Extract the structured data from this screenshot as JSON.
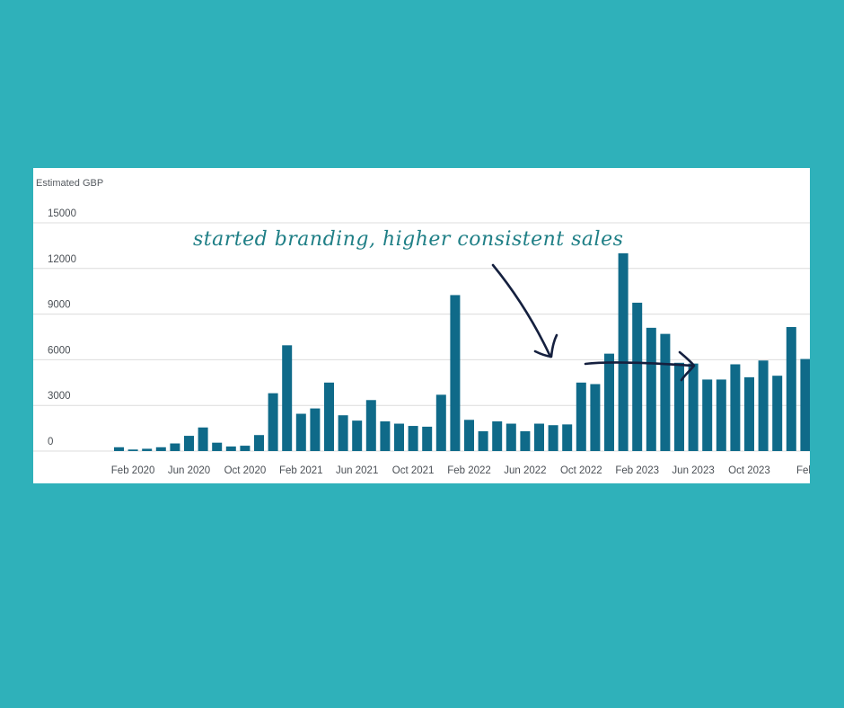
{
  "colors": {
    "background": "#2fb1ba",
    "card": "#ffffff",
    "bar": "#0f6a89",
    "gridline": "#dcdcdc",
    "annotation_text": "#1f7f86",
    "arrow": "#15203f"
  },
  "chart_data": {
    "type": "bar",
    "ylabel": "Estimated GBP",
    "ylim": [
      0,
      15000
    ],
    "yticks": [
      0,
      3000,
      6000,
      9000,
      12000,
      15000
    ],
    "grid": true,
    "legend": "none",
    "x_tick_labels": [
      "Feb 2020",
      "Jun 2020",
      "Oct 2020",
      "Feb 2021",
      "Jun 2021",
      "Oct 2021",
      "Feb 2022",
      "Jun 2022",
      "Oct 2022",
      "Feb 2023",
      "Jun 2023",
      "Oct 2023",
      "Feb"
    ],
    "x_tick_bar_index": [
      1,
      5,
      9,
      13,
      17,
      21,
      25,
      29,
      33,
      37,
      41,
      45,
      49
    ],
    "categories": [
      "Jan 2020",
      "Feb 2020",
      "Mar 2020",
      "Apr 2020",
      "May 2020",
      "Jun 2020",
      "Jul 2020",
      "Aug 2020",
      "Sep 2020",
      "Oct 2020",
      "Nov 2020",
      "Dec 2020",
      "Jan 2021",
      "Feb 2021",
      "Mar 2021",
      "Apr 2021",
      "May 2021",
      "Jun 2021",
      "Jul 2021",
      "Aug 2021",
      "Sep 2021",
      "Oct 2021",
      "Nov 2021",
      "Dec 2021",
      "Jan 2022",
      "Feb 2022",
      "Mar 2022",
      "Apr 2022",
      "May 2022",
      "Jun 2022",
      "Jul 2022",
      "Aug 2022",
      "Sep 2022",
      "Oct 2022",
      "Nov 2022",
      "Dec 2022",
      "Jan 2023",
      "Feb 2023",
      "Mar 2023",
      "Apr 2023",
      "May 2023",
      "Jun 2023",
      "Jul 2023",
      "Aug 2023",
      "Sep 2023",
      "Oct 2023",
      "Nov 2023",
      "Dec 2023",
      "Jan 2024",
      "Feb 2024"
    ],
    "values": [
      250,
      100,
      150,
      250,
      500,
      1000,
      1550,
      550,
      300,
      350,
      1050,
      3800,
      6950,
      2450,
      2800,
      4500,
      2350,
      2000,
      3350,
      1950,
      1800,
      1650,
      1600,
      3700,
      10250,
      2050,
      1300,
      1950,
      1800,
      1300,
      1800,
      1700,
      1750,
      4500,
      4400,
      6400,
      13000,
      9750,
      8100,
      7700,
      5800,
      5750,
      4700,
      4700,
      5700,
      4850,
      5950,
      4950,
      8150,
      6050
    ],
    "annotation": "started branding, higher consistent sales"
  }
}
